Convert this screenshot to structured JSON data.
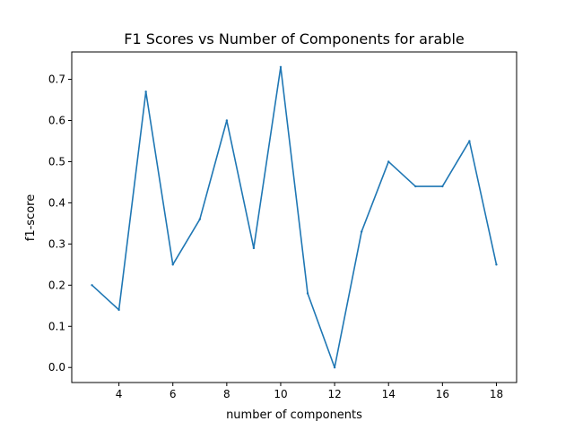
{
  "chart_data": {
    "type": "line",
    "title": "F1 Scores vs Number of Components for arable",
    "xlabel": "number of components",
    "ylabel": "f1-score",
    "x": [
      3,
      4,
      5,
      6,
      7,
      8,
      9,
      10,
      11,
      12,
      13,
      14,
      15,
      16,
      17,
      18
    ],
    "series": [
      {
        "values": [
          0.2,
          0.14,
          0.67,
          0.25,
          0.36,
          0.6,
          0.29,
          0.73,
          0.18,
          0.0,
          0.33,
          0.5,
          0.44,
          0.44,
          0.55,
          0.25
        ],
        "color": "#1f77b4"
      }
    ],
    "xlim": [
      2.25,
      18.75
    ],
    "ylim": [
      -0.0365,
      0.7665
    ],
    "xticks": [
      4,
      6,
      8,
      10,
      12,
      14,
      16,
      18
    ],
    "xtick_labels": [
      "4",
      "6",
      "8",
      "10",
      "12",
      "14",
      "16",
      "18"
    ],
    "yticks": [
      0.0,
      0.1,
      0.2,
      0.3,
      0.4,
      0.5,
      0.6,
      0.7
    ],
    "ytick_labels": [
      "0.0",
      "0.1",
      "0.2",
      "0.3",
      "0.4",
      "0.5",
      "0.6",
      "0.7"
    ],
    "grid": false,
    "legend": "none"
  }
}
